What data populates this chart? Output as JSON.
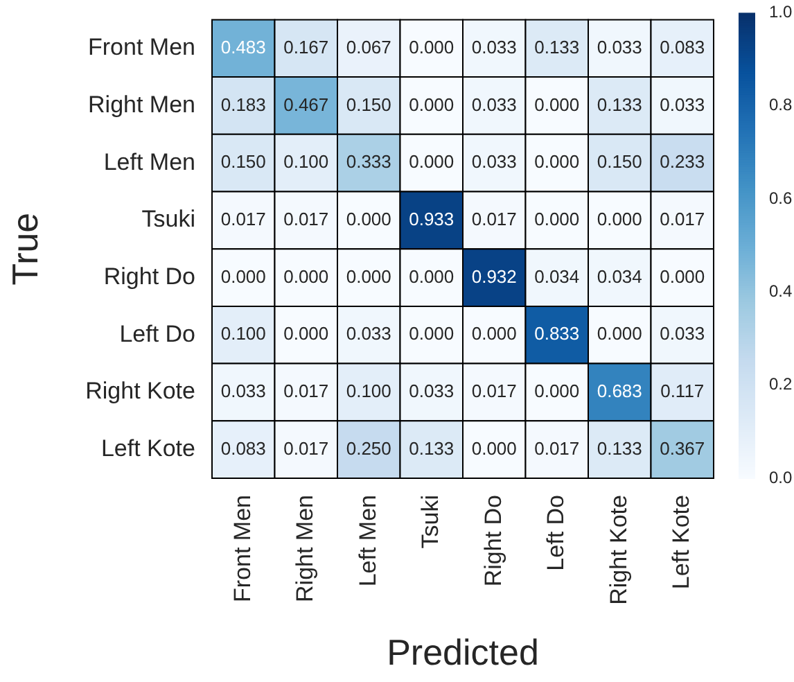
{
  "chart_data": {
    "type": "heatmap",
    "xlabel": "Predicted",
    "ylabel": "True",
    "categories": [
      "Front Men",
      "Right Men",
      "Left Men",
      "Tsuki",
      "Right Do",
      "Left Do",
      "Right Kote",
      "Left Kote"
    ],
    "y_categories": [
      "Front Men",
      "Right Men",
      "Left Men",
      "Tsuki",
      "Right Do",
      "Left Do",
      "Right Kote",
      "Left Kote"
    ],
    "cells": [
      [
        0.483,
        0.167,
        0.067,
        0,
        0.033,
        0.133,
        0.033,
        0.083
      ],
      [
        0.183,
        0.467,
        0.15,
        0,
        0.033,
        0,
        0.133,
        0.033
      ],
      [
        0.15,
        0.1,
        0.333,
        0,
        0.033,
        0,
        0.15,
        0.233
      ],
      [
        0.017,
        0.017,
        0,
        0.933,
        0.017,
        0,
        0,
        0.017
      ],
      [
        0,
        0,
        0,
        0,
        0.932,
        0.034,
        0.034,
        0
      ],
      [
        0.1,
        0,
        0.033,
        0,
        0,
        0.833,
        0,
        0.033
      ],
      [
        0.033,
        0.017,
        0.1,
        0.033,
        0.017,
        0,
        0.683,
        0.117
      ],
      [
        0.083,
        0.017,
        0.25,
        0.133,
        0,
        0.017,
        0.133,
        0.367
      ]
    ],
    "cell_labels": [
      [
        "0.483",
        "0.167",
        "0.067",
        "0.000",
        "0.033",
        "0.133",
        "0.033",
        "0.083"
      ],
      [
        "0.183",
        "0.467",
        "0.150",
        "0.000",
        "0.033",
        "0.000",
        "0.133",
        "0.033"
      ],
      [
        "0.150",
        "0.100",
        "0.333",
        "0.000",
        "0.033",
        "0.000",
        "0.150",
        "0.233"
      ],
      [
        "0.017",
        "0.017",
        "0.000",
        "0.933",
        "0.017",
        "0.000",
        "0.000",
        "0.017"
      ],
      [
        "0.000",
        "0.000",
        "0.000",
        "0.000",
        "0.932",
        "0.034",
        "0.034",
        "0.000"
      ],
      [
        "0.100",
        "0.000",
        "0.033",
        "0.000",
        "0.000",
        "0.833",
        "0.000",
        "0.033"
      ],
      [
        "0.033",
        "0.017",
        "0.100",
        "0.033",
        "0.017",
        "0.000",
        "0.683",
        "0.117"
      ],
      [
        "0.083",
        "0.017",
        "0.250",
        "0.133",
        "0.000",
        "0.017",
        "0.133",
        "0.367"
      ]
    ],
    "data_labels": true,
    "clim": [
      0,
      1
    ],
    "cticks": [
      {
        "value": 0,
        "label": "0.0"
      },
      {
        "value": 0.2,
        "label": "0.2"
      },
      {
        "value": 0.4,
        "label": "0.4"
      },
      {
        "value": 0.6,
        "label": "0.6"
      },
      {
        "value": 0.8,
        "label": "0.8"
      },
      {
        "value": 1,
        "label": "1.0"
      }
    ]
  }
}
